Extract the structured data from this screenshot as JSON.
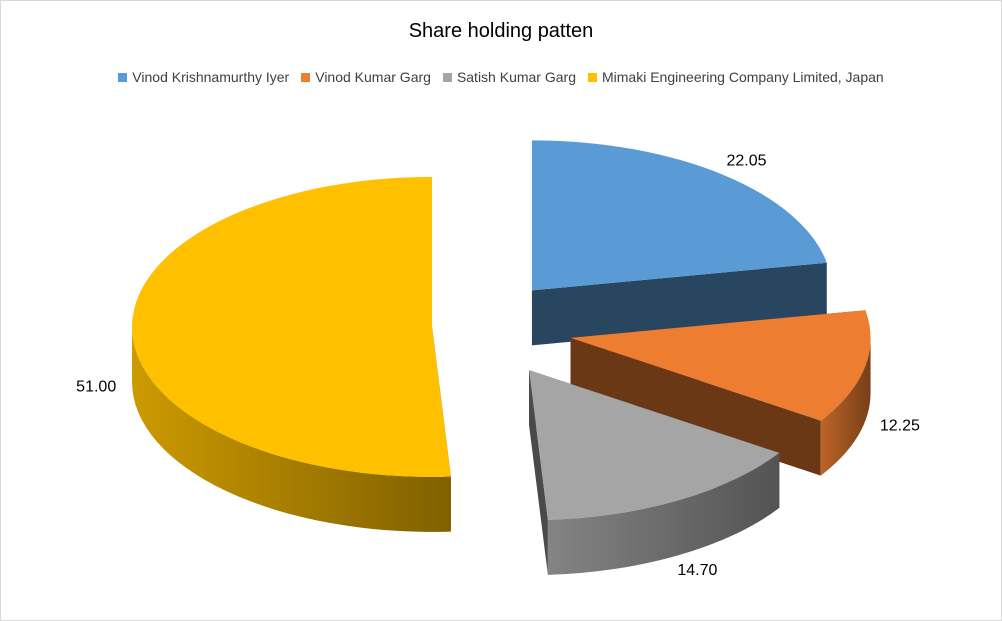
{
  "chart_data": {
    "type": "pie",
    "title": "Share holding patten",
    "style": "3d-exploded",
    "legend_position": "top",
    "slices": [
      {
        "label": "Vinod Krishnamurthy Iyer",
        "value": 22.05,
        "value_label": "22.05",
        "color": "#5b9bd5"
      },
      {
        "label": "Vinod Kumar Garg",
        "value": 12.25,
        "value_label": "12.25",
        "color": "#ed7d31"
      },
      {
        "label": "Satish Kumar Garg",
        "value": 14.7,
        "value_label": "14.70",
        "color": "#a5a5a5"
      },
      {
        "label": "Mimaki Engineering Company Limited, Japan",
        "value": 51.0,
        "value_label": "51.00",
        "color": "#ffc000"
      }
    ]
  }
}
